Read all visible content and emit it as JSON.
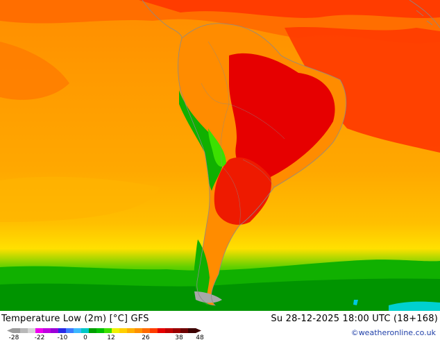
{
  "map": {
    "title": "Temperature Low (2m) [°C] GFS",
    "datetime": "Su 28-12-2025 18:00 UTC (18+168)",
    "credit": "©weatheronline.co.uk"
  },
  "legend": {
    "tick_labels": [
      "-28",
      "-22",
      "-10",
      "0",
      "12",
      "26",
      "38",
      "48"
    ],
    "colors": [
      "#9c9c9c",
      "#b8b8b8",
      "#d4d4d4",
      "#ee00ee",
      "#c000e0",
      "#9a00d8",
      "#2a2ae8",
      "#3c7cff",
      "#3cb8ff",
      "#00c8c8",
      "#00a000",
      "#00c000",
      "#3ce000",
      "#f0f000",
      "#ffd000",
      "#ffb000",
      "#ff9000",
      "#ff6a00",
      "#ff3c00",
      "#e60000",
      "#c00000",
      "#9a0000",
      "#6e0000",
      "#3c0000"
    ]
  }
}
